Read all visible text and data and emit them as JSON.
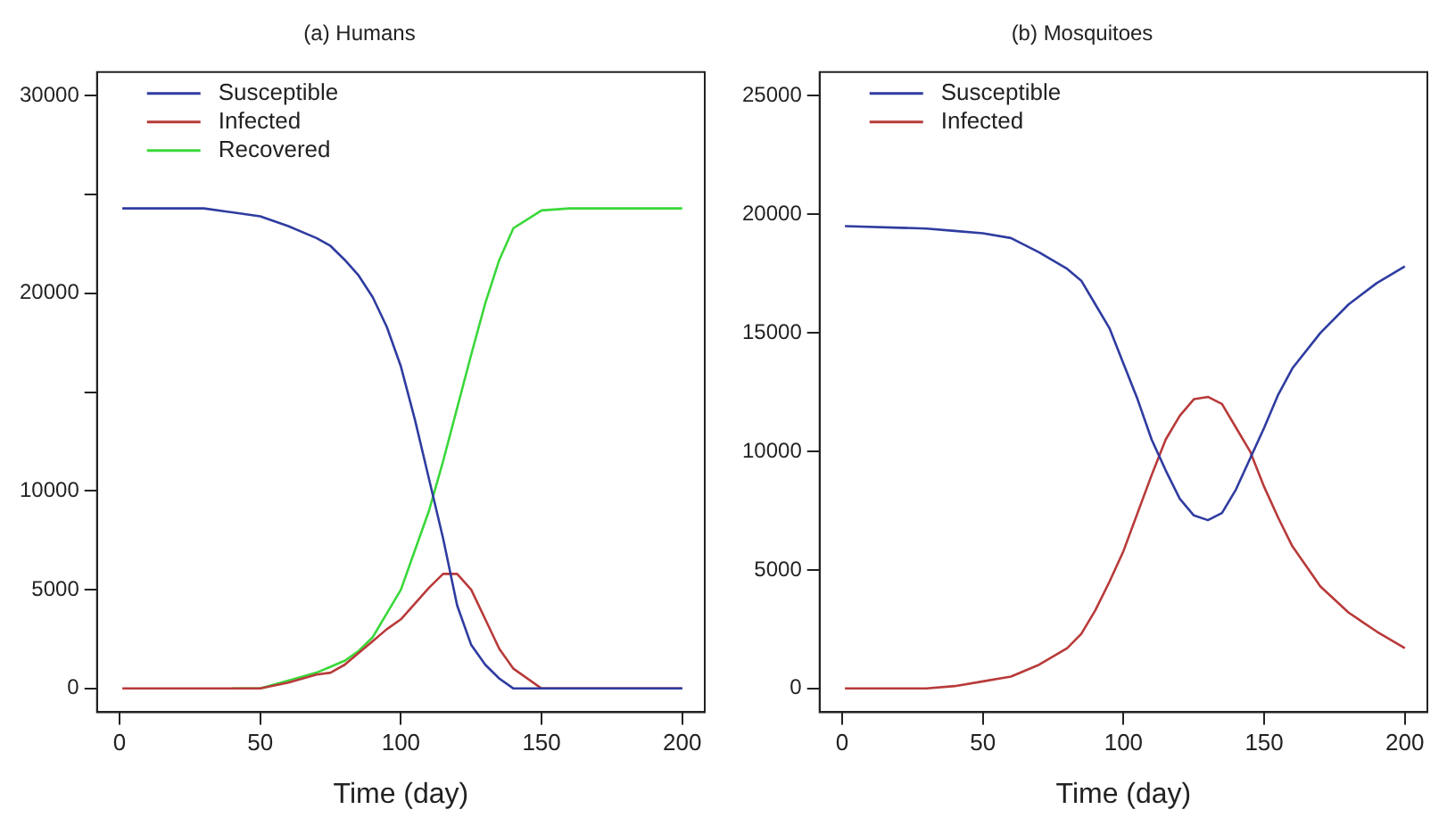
{
  "chart_data": [
    {
      "type": "line",
      "title": "(a) Humans",
      "xlabel": "Time (day)",
      "legend": "top left",
      "xlim": [
        -8,
        208
      ],
      "ylim": [
        -1200,
        31200
      ],
      "xticks": [
        0,
        50,
        100,
        150,
        200
      ],
      "yticks": [
        0,
        5000,
        10000,
        {
          "value": 15000,
          "label": null
        },
        20000,
        {
          "value": 25000,
          "label": null
        },
        30000
      ],
      "x": [
        1,
        30,
        40,
        50,
        60,
        70,
        75,
        80,
        85,
        90,
        95,
        100,
        105,
        110,
        115,
        120,
        125,
        130,
        135,
        140,
        150,
        160,
        200
      ],
      "series": [
        {
          "name": "Susceptible",
          "color": "#2f3ca0",
          "values": [
            24300,
            24300,
            24100,
            23900,
            23400,
            22800,
            22400,
            21700,
            20900,
            19800,
            18300,
            16300,
            13600,
            10600,
            7600,
            4200,
            2200,
            1200,
            500,
            0,
            0,
            0,
            0
          ]
        },
        {
          "name": "Infected",
          "color": "#b83a3a",
          "values": [
            0,
            0,
            0,
            0,
            300,
            700,
            800,
            1200,
            1800,
            2400,
            3000,
            3500,
            4300,
            5100,
            5800,
            5800,
            5000,
            3500,
            2000,
            1000,
            0,
            0,
            0
          ]
        },
        {
          "name": "Recovered",
          "color": "#3ad83a",
          "values": [
            null,
            null,
            0,
            0,
            400,
            800,
            1100,
            1400,
            1900,
            2600,
            3800,
            5000,
            7000,
            9000,
            11500,
            14200,
            16900,
            19500,
            21700,
            23300,
            24200,
            24300,
            24300
          ]
        }
      ]
    },
    {
      "type": "line",
      "title": "(b) Mosquitoes",
      "xlabel": "Time (day)",
      "legend": "top left",
      "xlim": [
        -8,
        208
      ],
      "ylim": [
        -1000,
        26000
      ],
      "xticks": [
        0,
        50,
        100,
        150,
        200
      ],
      "yticks": [
        0,
        5000,
        10000,
        15000,
        20000,
        25000
      ],
      "x": [
        1,
        30,
        40,
        50,
        60,
        70,
        80,
        85,
        90,
        95,
        100,
        105,
        110,
        115,
        120,
        125,
        130,
        135,
        140,
        145,
        150,
        155,
        160,
        170,
        180,
        190,
        200
      ],
      "series": [
        {
          "name": "Susceptible",
          "color": "#2f3ca0",
          "values": [
            19500,
            19400,
            19300,
            19200,
            19000,
            18400,
            17700,
            17200,
            16200,
            15200,
            13700,
            12200,
            10500,
            9200,
            8000,
            7300,
            7100,
            7400,
            8400,
            9700,
            11000,
            12400,
            13500,
            15000,
            16200,
            17100,
            17800
          ]
        },
        {
          "name": "Infected",
          "color": "#b83a3a",
          "values": [
            0,
            0,
            100,
            300,
            500,
            1000,
            1700,
            2300,
            3300,
            4500,
            5800,
            7400,
            9000,
            10500,
            11500,
            12200,
            12300,
            12000,
            11000,
            10000,
            8500,
            7200,
            6000,
            4300,
            3200,
            2400,
            1700
          ]
        }
      ]
    }
  ]
}
